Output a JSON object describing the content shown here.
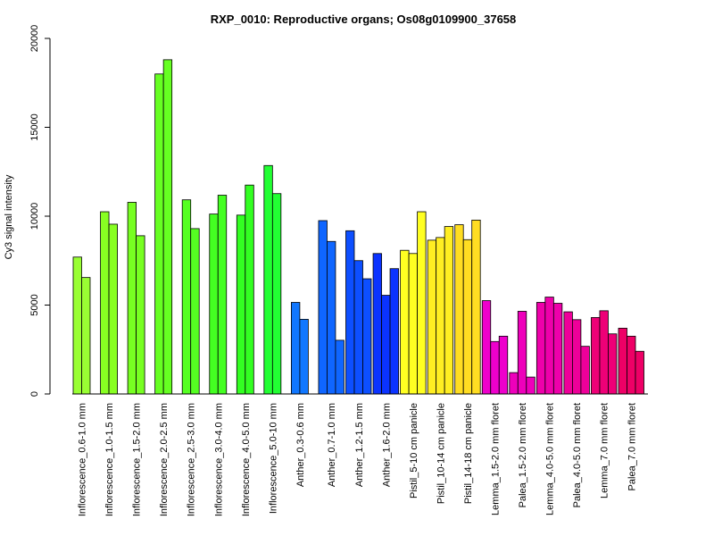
{
  "chart_data": {
    "type": "bar",
    "title": "RXP_0010: Reproductive organs; Os08g0109900_37658",
    "ylabel": "Cy3 signal intensity",
    "xlabel": "",
    "ylim": [
      0,
      20000
    ],
    "yticks": [
      0,
      5000,
      10000,
      15000,
      20000
    ],
    "grid": false,
    "groups": [
      {
        "label": "Inflorescence_0.6-1.0 mm",
        "color": "#99ff33",
        "values": [
          7700,
          6550
        ]
      },
      {
        "label": "Inflorescence_1.0-1.5 mm",
        "color": "#88ff22",
        "values": [
          10250,
          9550
        ]
      },
      {
        "label": "Inflorescence_1.5-2.0 mm",
        "color": "#77ff22",
        "values": [
          10780,
          8900
        ]
      },
      {
        "label": "Inflorescence_2.0-2.5 mm",
        "color": "#66ff22",
        "values": [
          18000,
          18800
        ]
      },
      {
        "label": "Inflorescence_2.5-3.0 mm",
        "color": "#55ff22",
        "values": [
          10920,
          9300
        ]
      },
      {
        "label": "Inflorescence_3.0-4.0 mm",
        "color": "#44ff22",
        "values": [
          10120,
          11180
        ]
      },
      {
        "label": "Inflorescence_4.0-5.0 mm",
        "color": "#33ff22",
        "values": [
          10060,
          11750
        ]
      },
      {
        "label": "Inflorescence_5.0-10 mm",
        "color": "#22ff33",
        "values": [
          12850,
          11270
        ]
      },
      {
        "label": "Anther_0.3-0.6 mm",
        "color": "#1177ff",
        "values": [
          5150,
          4200
        ]
      },
      {
        "label": "Anther_0.7-1.0 mm",
        "color": "#0f66ff",
        "values": [
          9750,
          8580,
          3020
        ]
      },
      {
        "label": "Anther_1.2-1.5 mm",
        "color": "#0d4fff",
        "values": [
          9180,
          7500,
          6480
        ]
      },
      {
        "label": "Anther_1.6-2.0 mm",
        "color": "#0b33ff",
        "values": [
          7900,
          5550,
          7050
        ]
      },
      {
        "label": "Pistil_5-10 cm panicle",
        "color": "#ffff22",
        "values": [
          8080,
          7900,
          10250
        ]
      },
      {
        "label": "Pistil_10-14 cm panicle",
        "color": "#ffee22",
        "values": [
          8650,
          8800,
          9420
        ]
      },
      {
        "label": "Pistil_14-18 cm panicle",
        "color": "#ffdd22",
        "values": [
          9520,
          8680,
          9780
        ]
      },
      {
        "label": "Lemma_1.5-2.0 mm floret",
        "color": "#ee00cc",
        "values": [
          5250,
          2950,
          3250
        ]
      },
      {
        "label": "Palea_1.5-2.0 mm floret",
        "color": "#ee00bb",
        "values": [
          1200,
          4650,
          950
        ]
      },
      {
        "label": "Lemma_4.0-5.0 mm floret",
        "color": "#ee00aa",
        "values": [
          5150,
          5450,
          5100
        ]
      },
      {
        "label": "Palea_4.0-5.0 mm floret",
        "color": "#ee0099",
        "values": [
          4620,
          4180,
          2680
        ]
      },
      {
        "label": "Lemma_7.0 mm floret",
        "color": "#ee0077",
        "values": [
          4300,
          4680,
          3380
        ]
      },
      {
        "label": "Palea_7.0 mm floret",
        "color": "#ee0066",
        "values": [
          3700,
          3250,
          2400
        ]
      }
    ]
  }
}
